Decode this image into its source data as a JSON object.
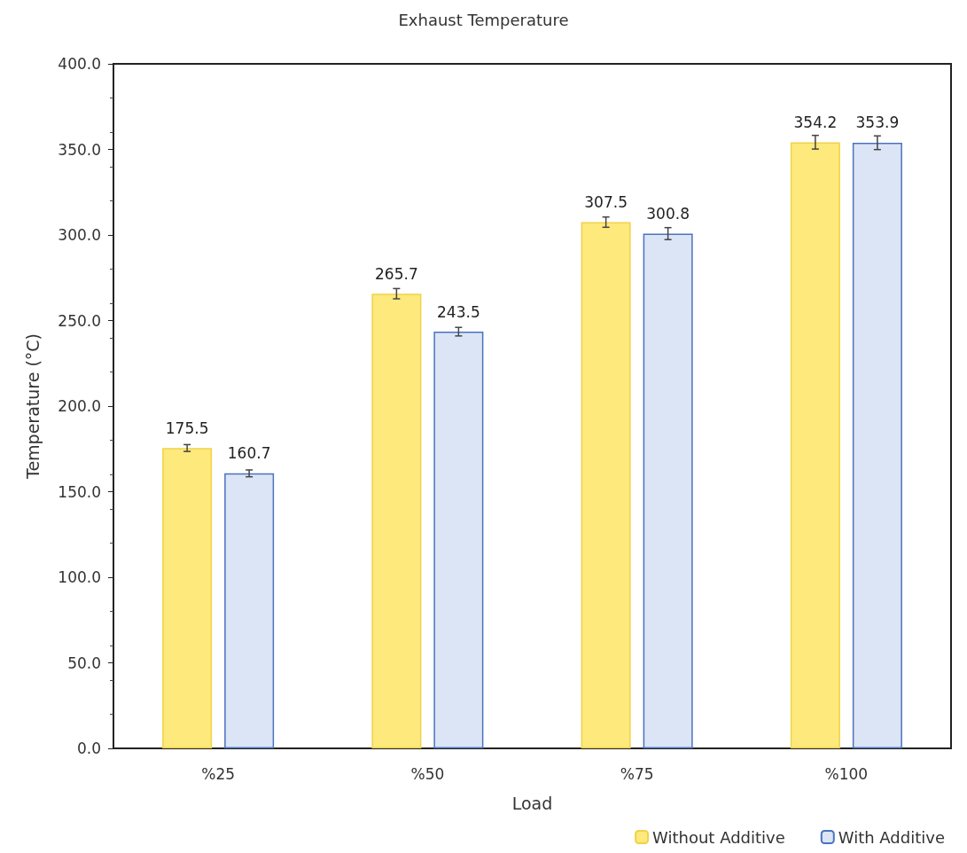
{
  "chart_data": {
    "type": "bar",
    "title": "Exhaust Temperature",
    "xlabel": "Load",
    "ylabel": "Temperature (°C)",
    "categories": [
      "%25",
      "%50",
      "%75",
      "%100"
    ],
    "series": [
      {
        "name": "Without Additive",
        "color": "#fde97c",
        "values": [
          175.5,
          265.7,
          307.5,
          354.2
        ],
        "errors": [
          2,
          3,
          3,
          4
        ]
      },
      {
        "name": "With Additive",
        "color": "#dce5f5",
        "values": [
          160.7,
          243.5,
          300.8,
          353.9
        ],
        "errors": [
          2,
          2.5,
          3.5,
          4
        ]
      }
    ],
    "ylim": [
      0,
      400
    ],
    "yticks": [
      {
        "value": 0,
        "label": "0.0"
      },
      {
        "value": 50,
        "label": "50.0"
      },
      {
        "value": 100,
        "label": "100.0"
      },
      {
        "value": 150,
        "label": "150.0"
      },
      {
        "value": 200,
        "label": "200.0"
      },
      {
        "value": 250,
        "label": "250.0"
      },
      {
        "value": 300,
        "label": "300.0"
      },
      {
        "value": 350,
        "label": "350.0"
      },
      {
        "value": 400,
        "label": "400.0"
      }
    ],
    "grid": false,
    "legend": "bottom right",
    "data_labels": true
  }
}
